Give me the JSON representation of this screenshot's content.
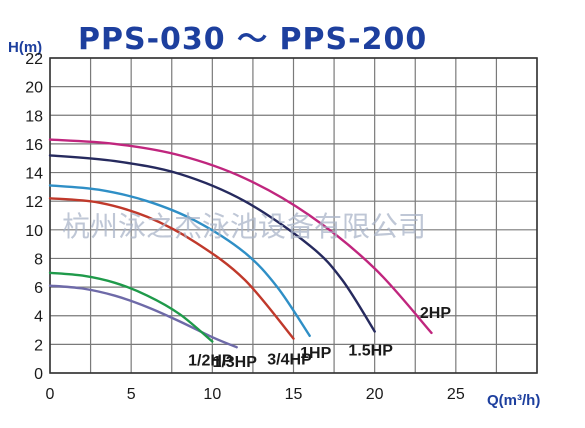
{
  "chart_data": {
    "type": "line",
    "title": "PPS-030 ～ PPS-200",
    "xlabel": "Q(m³/h)",
    "ylabel": "H(m)",
    "xlim": [
      0,
      30
    ],
    "ylim": [
      0,
      22
    ],
    "x_ticks": [
      0,
      5,
      10,
      15,
      20,
      25
    ],
    "y_ticks": [
      0,
      2,
      4,
      6,
      8,
      10,
      12,
      14,
      16,
      18,
      20,
      22
    ],
    "grid": true,
    "series": [
      {
        "name": "1/3HP",
        "color": "#6e6aa8",
        "x": [
          0,
          2,
          4,
          6,
          8,
          10,
          11.5
        ],
        "y": [
          6.1,
          5.9,
          5.4,
          4.6,
          3.6,
          2.5,
          1.8
        ]
      },
      {
        "name": "1/2HP",
        "color": "#1f9a4a",
        "x": [
          0,
          2,
          4,
          6,
          8,
          10
        ],
        "y": [
          7.0,
          6.8,
          6.3,
          5.4,
          4.1,
          2.2
        ]
      },
      {
        "name": "3/4HP",
        "color": "#c0392b",
        "x": [
          0,
          3,
          6,
          9,
          12,
          15
        ],
        "y": [
          12.2,
          11.9,
          10.9,
          9.1,
          6.5,
          2.4
        ]
      },
      {
        "name": "1HP",
        "color": "#2f8fc6",
        "x": [
          0,
          3,
          6,
          9,
          12,
          14,
          16
        ],
        "y": [
          13.1,
          12.8,
          12.0,
          10.6,
          8.4,
          6.0,
          2.6
        ]
      },
      {
        "name": "1.5HP",
        "color": "#262a5e",
        "x": [
          0,
          4,
          8,
          12,
          16,
          18,
          20
        ],
        "y": [
          15.2,
          14.8,
          13.9,
          12.0,
          8.9,
          6.5,
          2.9
        ]
      },
      {
        "name": "2HP",
        "color": "#c0267e",
        "x": [
          0,
          4,
          8,
          12,
          16,
          20,
          23.5
        ],
        "y": [
          16.3,
          16.0,
          15.2,
          13.6,
          11.0,
          7.3,
          2.8
        ]
      }
    ],
    "watermark": "杭州泳之杰泳池设备有限公司"
  }
}
